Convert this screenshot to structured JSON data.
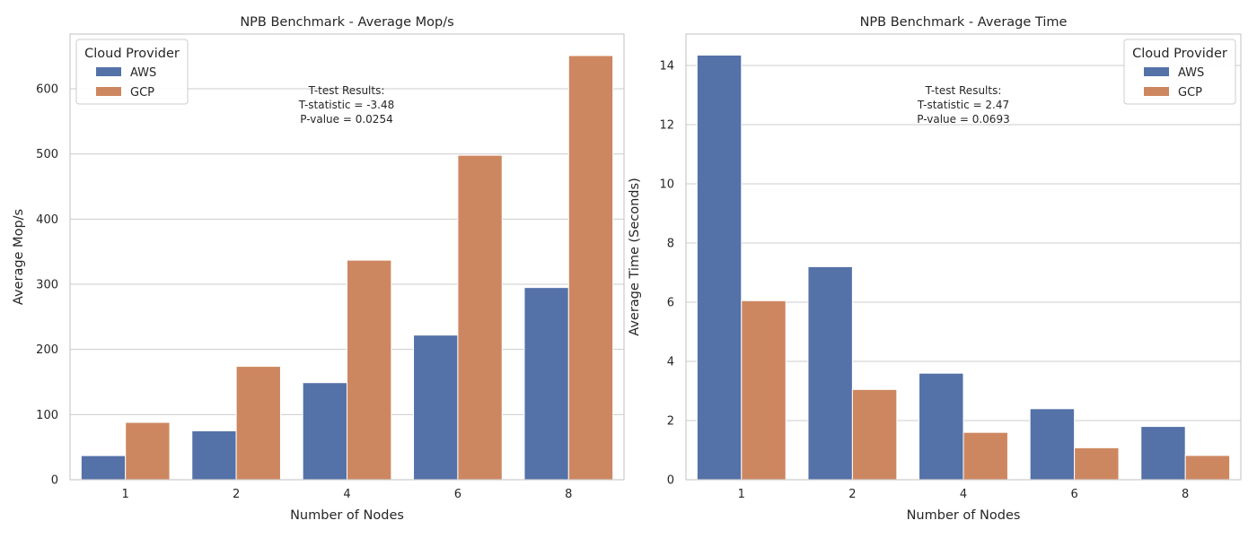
{
  "colors": {
    "AWS": "#5471a8",
    "GCP": "#cd8760"
  },
  "chart_data": [
    {
      "type": "bar",
      "title": "NPB Benchmark - Average Mop/s",
      "xlabel": "Number of Nodes",
      "ylabel": "Average Mop/s",
      "categories": [
        "1",
        "2",
        "4",
        "6",
        "8"
      ],
      "series": [
        {
          "name": "AWS",
          "values": [
            37,
            75,
            149,
            222,
            295
          ]
        },
        {
          "name": "GCP",
          "values": [
            88,
            174,
            337,
            498,
            651
          ]
        }
      ],
      "ylim": [
        0,
        684
      ],
      "yticks": [
        0,
        100,
        200,
        300,
        400,
        500,
        600
      ],
      "grid": true,
      "legend": {
        "title": "Cloud Provider",
        "position": "top-left"
      },
      "annotation": [
        "T-test Results:",
        "T-statistic = -3.48",
        "P-value = 0.0254"
      ]
    },
    {
      "type": "bar",
      "title": "NPB Benchmark - Average Time",
      "xlabel": "Number of Nodes",
      "ylabel": "Average Time (Seconds)",
      "categories": [
        "1",
        "2",
        "4",
        "6",
        "8"
      ],
      "series": [
        {
          "name": "AWS",
          "values": [
            14.35,
            7.2,
            3.6,
            2.4,
            1.8
          ]
        },
        {
          "name": "GCP",
          "values": [
            6.05,
            3.05,
            1.6,
            1.08,
            0.82
          ]
        }
      ],
      "ylim": [
        0,
        15.06
      ],
      "yticks": [
        0,
        2,
        4,
        6,
        8,
        10,
        12,
        14
      ],
      "grid": true,
      "legend": {
        "title": "Cloud Provider",
        "position": "top-right"
      },
      "annotation": [
        "T-test Results:",
        "T-statistic = 2.47",
        "P-value = 0.0693"
      ]
    }
  ]
}
